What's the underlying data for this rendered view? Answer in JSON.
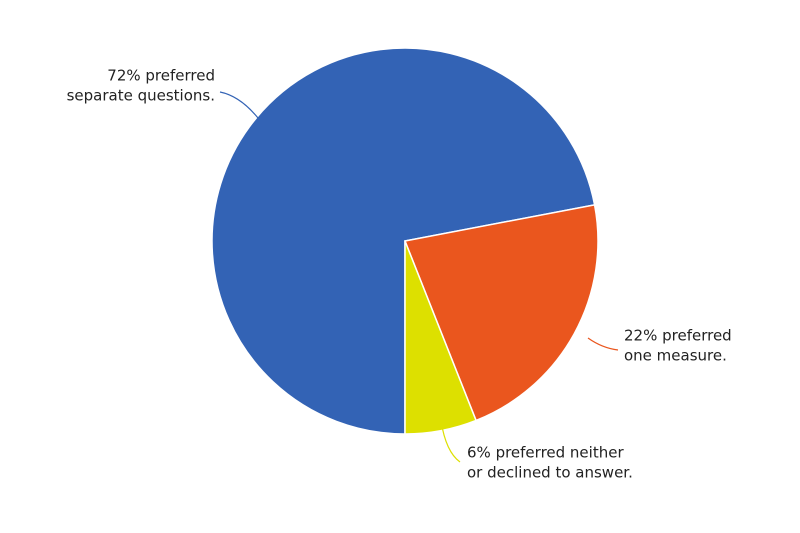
{
  "chart_data": {
    "type": "pie",
    "values": [
      72,
      22,
      6
    ],
    "value_labels": [
      [
        "72% preferred",
        "separate questions."
      ],
      [
        "22% preferred",
        "one measure."
      ],
      [
        "6% preferred neither",
        "or declined to answer."
      ]
    ],
    "colors": [
      "#3363b5",
      "#ea561e",
      "#dde000"
    ]
  }
}
